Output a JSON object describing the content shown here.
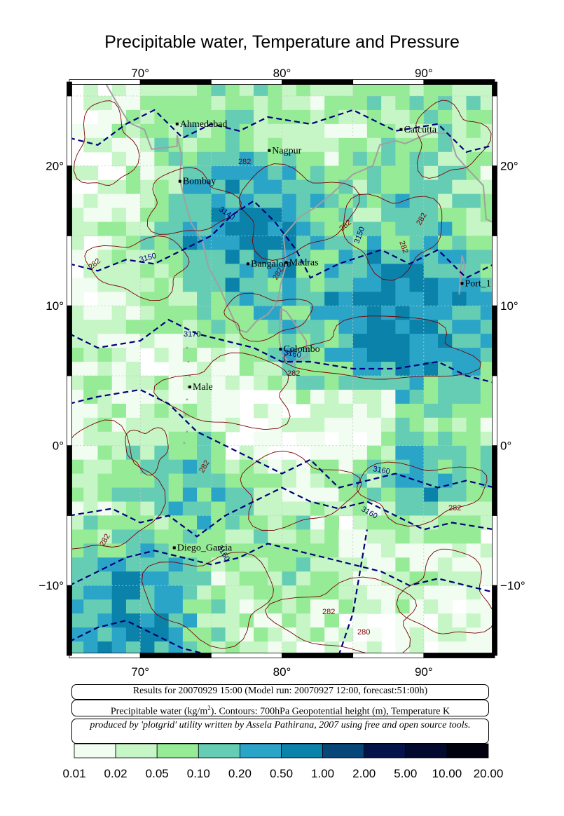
{
  "title": "Precipitable water, Temperature and Pressure",
  "axes": {
    "lon_ticks": [
      "70°",
      "80°",
      "90°"
    ],
    "lat_ticks": [
      "20°",
      "10°",
      "0°",
      "−10°"
    ]
  },
  "cities": [
    {
      "name": "Ahmedabad",
      "lon": 72.6,
      "lat": 23.0
    },
    {
      "name": "Nagpur",
      "lon": 79.1,
      "lat": 21.1
    },
    {
      "name": "Calcutta",
      "lon": 88.4,
      "lat": 22.6
    },
    {
      "name": "Bombay",
      "lon": 72.8,
      "lat": 18.9
    },
    {
      "name": "Bangalore",
      "lon": 77.6,
      "lat": 13.0
    },
    {
      "name": "Madras",
      "lon": 80.3,
      "lat": 13.1
    },
    {
      "name": "Port_1",
      "lon": 92.7,
      "lat": 11.6
    },
    {
      "name": "Colombo",
      "lon": 79.9,
      "lat": 6.9
    },
    {
      "name": "Male",
      "lon": 73.5,
      "lat": 4.2
    },
    {
      "name": "Diego_Garcia",
      "lon": 72.4,
      "lat": -7.3
    }
  ],
  "contour_labels": {
    "geopotential": [
      "3140",
      "3150",
      "3150",
      "3160",
      "3160",
      "3160",
      "3160",
      "3170"
    ],
    "temperature": [
      "282",
      "282",
      "282",
      "282",
      "282",
      "282",
      "282",
      "282",
      "282",
      "282",
      "282",
      "280"
    ]
  },
  "info": {
    "results": "Results for 20070929 15:00 (Model run: 20070927 12:00, forecast:51:00h)",
    "legend_prefix": "Precipitable water (kg/m",
    "legend_sup": "2",
    "legend_suffix": ").  Contours: 700hPa Geopotential height (m), Temperature K",
    "credit": "produced by 'plotgrid' utility written by Assela Pathirana, 2007 using free and open source tools."
  },
  "colorbar": {
    "labels": [
      "0.01",
      "0.02",
      "0.05",
      "0.10",
      "0.20",
      "0.50",
      "1.00",
      "2.00",
      "5.00",
      "10.00",
      "20.00"
    ],
    "colors": [
      "#f0fdf0",
      "#c6f5c6",
      "#96eb96",
      "#64cdb4",
      "#2aa5c8",
      "#0a82aa",
      "#064678",
      "#04144a",
      "#030a30",
      "#01010f"
    ]
  },
  "colors": {
    "geopotential_contour": "#00007a",
    "temperature_contour": "#7a0000",
    "coastline": "#a0a0a0"
  },
  "extent": {
    "lon_min": 65,
    "lon_max": 95,
    "lat_min": -15,
    "lat_max": 26
  }
}
